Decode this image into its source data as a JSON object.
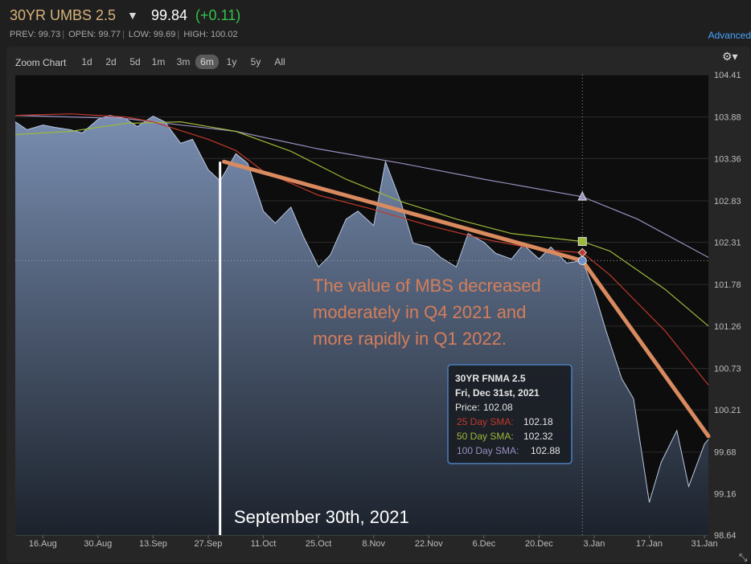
{
  "header": {
    "title": "30YR UMBS 2.5",
    "price": "99.84",
    "change": "(+0.11)",
    "stats": [
      {
        "label": "PREV:",
        "value": "99.73"
      },
      {
        "label": "OPEN:",
        "value": "99.77"
      },
      {
        "label": "LOW:",
        "value": "99.69"
      },
      {
        "label": "HIGH:",
        "value": "100.02"
      }
    ],
    "advanced_label": "Advanced"
  },
  "zoom": {
    "label": "Zoom Chart",
    "buttons": [
      "1d",
      "2d",
      "5d",
      "1m",
      "3m",
      "6m",
      "1y",
      "5y",
      "All"
    ],
    "active": "6m"
  },
  "colors": {
    "price_area": "#8aa2c8",
    "sma25": "#c0392b",
    "sma50": "#9ab83a",
    "sma100": "#9a8fc0",
    "trend_line": "#d98a5f",
    "annotation_text": "#d47e5a"
  },
  "chart_data": {
    "type": "area",
    "ylim": [
      98.64,
      104.41
    ],
    "y_ticks": [
      "104.41",
      "103.88",
      "103.36",
      "102.83",
      "102.31",
      "101.78",
      "101.26",
      "100.73",
      "100.21",
      "99.68",
      "99.16",
      "98.64"
    ],
    "x_ticks": [
      "16.Aug",
      "30.Aug",
      "13.Sep",
      "27.Sep",
      "11.Oct",
      "25.Oct",
      "8.Nov",
      "22.Nov",
      "6.Dec",
      "20.Dec",
      "3.Jan",
      "17.Jan",
      "31.Jan"
    ],
    "price_series": {
      "name": "30YR FNMA 2.5",
      "x": [
        "2021-08-09",
        "2021-08-12",
        "2021-08-16",
        "2021-08-19",
        "2021-08-23",
        "2021-08-26",
        "2021-08-30",
        "2021-09-02",
        "2021-09-06",
        "2021-09-09",
        "2021-09-13",
        "2021-09-16",
        "2021-09-20",
        "2021-09-23",
        "2021-09-27",
        "2021-09-30",
        "2021-10-04",
        "2021-10-07",
        "2021-10-11",
        "2021-10-14",
        "2021-10-18",
        "2021-10-21",
        "2021-10-25",
        "2021-10-28",
        "2021-11-01",
        "2021-11-04",
        "2021-11-08",
        "2021-11-11",
        "2021-11-15",
        "2021-11-18",
        "2021-11-22",
        "2021-11-25",
        "2021-11-29",
        "2021-12-02",
        "2021-12-06",
        "2021-12-09",
        "2021-12-13",
        "2021-12-16",
        "2021-12-20",
        "2021-12-23",
        "2021-12-27",
        "2021-12-31",
        "2022-01-03",
        "2022-01-06",
        "2022-01-10",
        "2022-01-13",
        "2022-01-17",
        "2022-01-20",
        "2022-01-24",
        "2022-01-27",
        "2022-01-31",
        "2022-02-01"
      ],
      "y": [
        103.82,
        103.72,
        103.78,
        103.75,
        103.72,
        103.68,
        103.85,
        103.9,
        103.86,
        103.76,
        103.89,
        103.82,
        103.55,
        103.6,
        103.22,
        103.08,
        103.42,
        103.3,
        102.7,
        102.55,
        102.75,
        102.4,
        102.0,
        102.15,
        102.6,
        102.7,
        102.52,
        103.32,
        102.8,
        102.3,
        102.25,
        102.12,
        102.0,
        102.42,
        102.31,
        102.17,
        102.1,
        102.28,
        102.1,
        102.25,
        102.05,
        102.08,
        101.7,
        101.2,
        100.6,
        100.35,
        99.05,
        99.55,
        99.95,
        99.25,
        99.78,
        99.84
      ]
    },
    "sma25": {
      "name": "25 Day SMA",
      "x": [
        "2021-08-09",
        "2021-08-23",
        "2021-09-06",
        "2021-09-13",
        "2021-09-27",
        "2021-10-04",
        "2021-10-11",
        "2021-10-25",
        "2021-11-08",
        "2021-11-22",
        "2021-12-06",
        "2021-12-20",
        "2021-12-31",
        "2022-01-07",
        "2022-01-14",
        "2022-01-21",
        "2022-02-01"
      ],
      "y": [
        103.9,
        103.92,
        103.88,
        103.82,
        103.6,
        103.46,
        103.2,
        102.9,
        102.72,
        102.52,
        102.35,
        102.22,
        102.18,
        101.9,
        101.55,
        101.2,
        100.52
      ]
    },
    "sma50": {
      "name": "50 Day SMA",
      "x": [
        "2021-08-09",
        "2021-08-23",
        "2021-09-06",
        "2021-09-20",
        "2021-10-04",
        "2021-10-18",
        "2021-11-01",
        "2021-11-15",
        "2021-11-29",
        "2021-12-13",
        "2021-12-31",
        "2022-01-07",
        "2022-01-21",
        "2022-02-01"
      ],
      "y": [
        103.66,
        103.7,
        103.8,
        103.82,
        103.7,
        103.45,
        103.1,
        102.82,
        102.6,
        102.42,
        102.32,
        102.2,
        101.72,
        101.26
      ]
    },
    "sma100": {
      "name": "100 Day SMA",
      "x": [
        "2021-08-09",
        "2021-09-06",
        "2021-10-04",
        "2021-10-25",
        "2021-11-15",
        "2021-12-06",
        "2021-12-31",
        "2022-01-14",
        "2022-02-01"
      ],
      "y": [
        103.9,
        103.86,
        103.7,
        103.48,
        103.3,
        103.1,
        102.88,
        102.6,
        102.12
      ]
    },
    "tooltip": {
      "series": "30YR FNMA 2.5",
      "date": "Fri, Dec 31st, 2021",
      "price_label": "Price:",
      "price": "102.08",
      "rows": [
        {
          "name": "25 Day SMA:",
          "value": "102.18"
        },
        {
          "name": "50 Day SMA:",
          "value": "102.32"
        },
        {
          "name": "100 Day SMA:",
          "value": "102.88"
        }
      ]
    },
    "trend_segments": [
      {
        "x": [
          "2021-10-01",
          "2021-12-31"
        ],
        "y": [
          103.32,
          102.08
        ]
      },
      {
        "x": [
          "2021-12-31",
          "2022-02-01"
        ],
        "y": [
          102.08,
          99.88
        ]
      }
    ],
    "marker_date": "2021-09-30",
    "marker_label": "September 30th, 2021",
    "annotation": [
      "The value of MBS decreased",
      "moderately in Q4 2021 and",
      "more rapidly in Q1 2022."
    ]
  }
}
